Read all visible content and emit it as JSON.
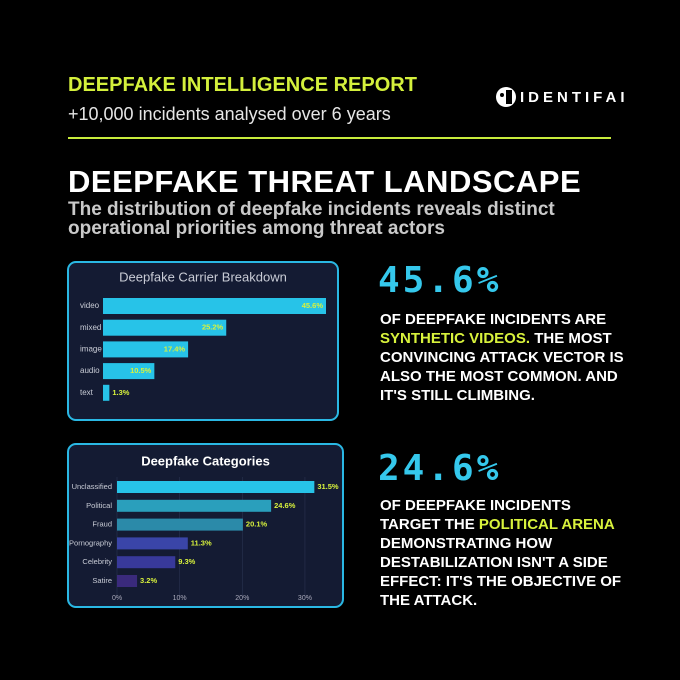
{
  "header": {
    "title": "DEEPFAKE INTELLIGENCE REPORT",
    "subtitle": "+10,000 incidents analysed over 6 years",
    "logo": "IDENTIFAI"
  },
  "heading": "DEEPFAKE THREAT LANDSCAPE",
  "subheading": "The distribution of deepfake incidents reveals distinct operational priorities among threat actors",
  "chart_data": [
    {
      "type": "bar",
      "orientation": "horizontal",
      "title": "Deepfake Carrier Breakdown",
      "categories": [
        "video",
        "mixed",
        "image",
        "audio",
        "text"
      ],
      "values": [
        45.6,
        25.2,
        17.4,
        10.5,
        1.3
      ],
      "value_labels": [
        "45.6%",
        "25.2%",
        "17.4%",
        "10.5%",
        "1.3%"
      ],
      "color": "#27c3e8",
      "label_color": "#d8f23c"
    },
    {
      "type": "bar",
      "orientation": "horizontal",
      "title": "Deepfake Categories",
      "categories": [
        "Unclassified",
        "Political",
        "Fraud",
        "Pornography",
        "Celebrity",
        "Satire"
      ],
      "values": [
        31.5,
        24.6,
        20.1,
        11.3,
        9.3,
        3.2
      ],
      "value_labels": [
        "31.5%",
        "24.6%",
        "20.1%",
        "11.3%",
        "9.3%",
        "3.2%"
      ],
      "colors": [
        "#27c3e8",
        "#2a9fbc",
        "#2b8aa9",
        "#3a45a8",
        "#38399a",
        "#3a2a7c"
      ],
      "label_color": "#d8f23c",
      "xlim": [
        0,
        34
      ],
      "xticks": [
        {
          "value": 0,
          "label": "0%"
        },
        {
          "value": 10,
          "label": "10%"
        },
        {
          "value": 20,
          "label": "20%"
        },
        {
          "value": 30,
          "label": "30%"
        }
      ]
    }
  ],
  "stats": [
    {
      "figure": "45.6%",
      "before": "OF DEEPFAKE INCIDENTS ARE ",
      "highlight": "SYNTHETIC VIDEOS.",
      "after": " THE MOST CONVINCING ATTACK VECTOR IS ALSO THE MOST COMMON. AND IT'S STILL CLIMBING."
    },
    {
      "figure": "24.6%",
      "before": "OF DEEPFAKE INCIDENTS TARGET THE ",
      "highlight": "POLITICAL ARENA",
      "after": " DEMONSTRATING HOW DESTABILIZATION ISN'T A SIDE EFFECT: IT'S THE OBJECTIVE OF THE ATTACK."
    }
  ]
}
